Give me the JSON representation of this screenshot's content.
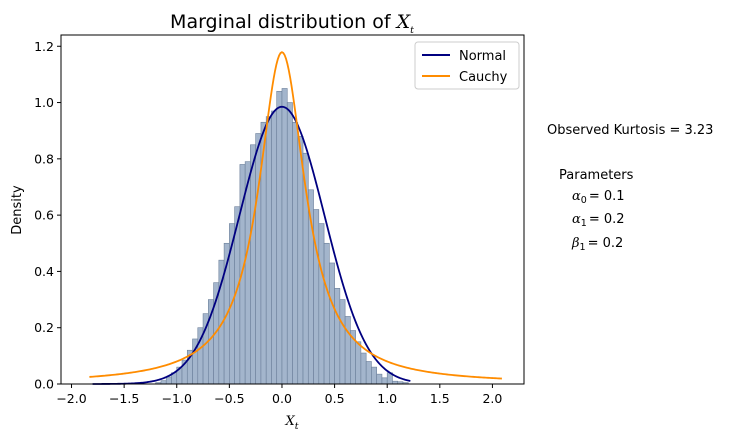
{
  "chart_data": {
    "type": "histogram",
    "title_prefix": "Marginal distribution of ",
    "title_math": "X",
    "title_math_sub": "t",
    "xlabel_math": "X",
    "xlabel_math_sub": "t",
    "ylabel": "Density",
    "xlim": [
      -2.1,
      2.3
    ],
    "ylim": [
      0,
      1.24
    ],
    "xticks": [
      -2.0,
      -1.5,
      -1.0,
      -0.5,
      0.0,
      0.5,
      1.0,
      1.5,
      2.0
    ],
    "xtick_labels": [
      "−2.0",
      "−1.5",
      "−1.0",
      "−0.5",
      "0.0",
      "0.5",
      "1.0",
      "1.5",
      "2.0"
    ],
    "yticks": [
      0.0,
      0.2,
      0.4,
      0.6,
      0.8,
      1.0,
      1.2
    ],
    "ytick_labels": [
      "0.0",
      "0.2",
      "0.4",
      "0.6",
      "0.8",
      "1.0",
      "1.2"
    ],
    "grid": false,
    "legend_position": "top-right",
    "histogram": {
      "bin_width": 0.05,
      "bin_centers": [
        -1.175,
        -1.125,
        -1.075,
        -1.025,
        -0.975,
        -0.925,
        -0.875,
        -0.825,
        -0.775,
        -0.725,
        -0.675,
        -0.625,
        -0.575,
        -0.525,
        -0.475,
        -0.425,
        -0.375,
        -0.325,
        -0.275,
        -0.225,
        -0.175,
        -0.125,
        -0.075,
        -0.025,
        0.025,
        0.075,
        0.125,
        0.175,
        0.225,
        0.275,
        0.325,
        0.375,
        0.425,
        0.475,
        0.525,
        0.575,
        0.625,
        0.675,
        0.725,
        0.775,
        0.825,
        0.875,
        0.925,
        0.975,
        1.025,
        1.075,
        1.125,
        1.175
      ],
      "densities": [
        0.005,
        0.012,
        0.025,
        0.04,
        0.06,
        0.085,
        0.12,
        0.16,
        0.2,
        0.25,
        0.3,
        0.36,
        0.44,
        0.5,
        0.57,
        0.63,
        0.78,
        0.79,
        0.85,
        0.89,
        0.93,
        0.95,
        0.97,
        1.04,
        1.05,
        1.0,
        0.93,
        0.88,
        0.82,
        0.69,
        0.62,
        0.57,
        0.5,
        0.43,
        0.34,
        0.3,
        0.24,
        0.19,
        0.15,
        0.11,
        0.08,
        0.06,
        0.035,
        0.022,
        0.04,
        0.01,
        0.008,
        0.005
      ],
      "fill_color": "#a3b5cc",
      "edge_color": "#6b7f9a"
    },
    "series": [
      {
        "name": "Normal",
        "type": "normal",
        "mean": 0.0,
        "std": 0.405,
        "x_range": [
          -1.8,
          1.22
        ],
        "color": "#000080"
      },
      {
        "name": "Cauchy",
        "type": "cauchy",
        "location": 0.0,
        "scale": 0.27,
        "x_range": [
          -1.83,
          2.09
        ],
        "color": "#ff8c00"
      }
    ],
    "annotations": {
      "kurtosis": "Observed Kurtosis = 3.23",
      "parameters_heading": "Parameters",
      "params": [
        {
          "symbol": "α",
          "sub": "0",
          "value": "= 0.1"
        },
        {
          "symbol": "α",
          "sub": "1",
          "value": "= 0.2"
        },
        {
          "symbol": "β",
          "sub": "1",
          "value": "= 0.2"
        }
      ]
    }
  }
}
